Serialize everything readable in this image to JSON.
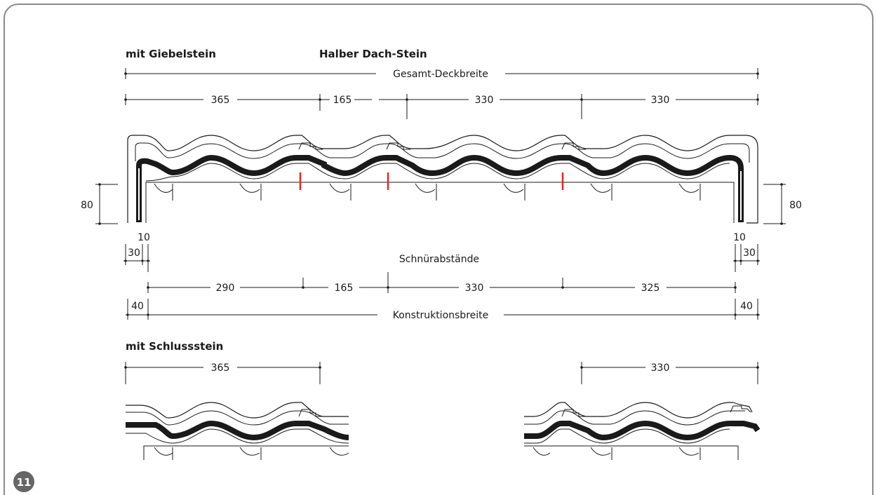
{
  "figure_number": "11",
  "top_section": {
    "label_left": "mit Giebelstein",
    "label_middle": "Halber Dach-Stein",
    "overall_label": "Gesamt-Deckbreite",
    "segments": [
      "365",
      "165",
      "330",
      "330"
    ],
    "height_left": "80",
    "height_right": "80",
    "gap_left": "10",
    "gap_right": "10",
    "offset_left": "30",
    "offset_right": "30",
    "string_label": "Schnürabstände",
    "string_segments": [
      "290",
      "165",
      "330",
      "325"
    ],
    "edge_left": "40",
    "edge_right": "40",
    "construction_label": "Konstruktionsbreite"
  },
  "bottom_section": {
    "label": "mit Schlussstein",
    "left_segment": "365",
    "right_segment": "330"
  },
  "colors": {
    "line": "#1a1a1a",
    "marker": "#e0262b",
    "badge": "#666666",
    "frame": "#8a8a8a"
  }
}
